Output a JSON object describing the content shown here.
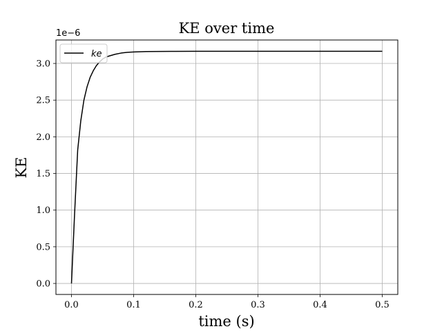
{
  "chart_data": {
    "type": "line",
    "title": "KE over time",
    "xlabel": "time (s)",
    "ylabel": "KE",
    "xlim": [
      -0.025,
      0.525
    ],
    "ylim": [
      -0.15,
      3.32
    ],
    "y_scale_offset": "1e−6",
    "x_ticks": [
      {
        "value": 0.0,
        "label": "0.0"
      },
      {
        "value": 0.1,
        "label": "0.1"
      },
      {
        "value": 0.2,
        "label": "0.2"
      },
      {
        "value": 0.3,
        "label": "0.3"
      },
      {
        "value": 0.4,
        "label": "0.4"
      },
      {
        "value": 0.5,
        "label": "0.5"
      }
    ],
    "y_ticks": [
      {
        "value": 0.0,
        "label": "0.0"
      },
      {
        "value": 0.5,
        "label": "0.5"
      },
      {
        "value": 1.0,
        "label": "1.0"
      },
      {
        "value": 1.5,
        "label": "1.5"
      },
      {
        "value": 2.0,
        "label": "2.0"
      },
      {
        "value": 2.5,
        "label": "2.5"
      },
      {
        "value": 3.0,
        "label": "3.0"
      }
    ],
    "grid": true,
    "legend_position": "top-left",
    "series": [
      {
        "name": "ke",
        "color": "#000000",
        "x": [
          0.0,
          0.005,
          0.01,
          0.015,
          0.02,
          0.025,
          0.03,
          0.035,
          0.04,
          0.045,
          0.05,
          0.055,
          0.06,
          0.07,
          0.08,
          0.09,
          0.1,
          0.12,
          0.14,
          0.16,
          0.2,
          0.25,
          0.3,
          0.35,
          0.4,
          0.45,
          0.5
        ],
        "y": [
          0.0,
          0.95,
          1.82,
          2.22,
          2.5,
          2.68,
          2.81,
          2.9,
          2.97,
          3.02,
          3.06,
          3.085,
          3.1,
          3.125,
          3.142,
          3.152,
          3.157,
          3.162,
          3.164,
          3.165,
          3.166,
          3.166,
          3.166,
          3.166,
          3.166,
          3.166,
          3.166
        ]
      }
    ]
  }
}
